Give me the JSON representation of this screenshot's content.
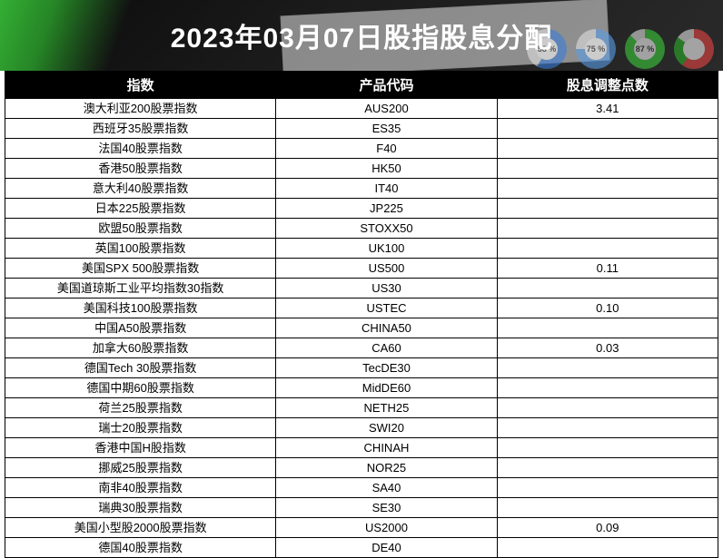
{
  "header": {
    "title": "2023年03月07日股指股息分配",
    "donuts": [
      {
        "label": "58 %"
      },
      {
        "label": "75 %"
      },
      {
        "label": "87 %"
      },
      {
        "label": ""
      }
    ]
  },
  "table": {
    "type": "table",
    "background_color": "#ffffff",
    "header_bg": "#000000",
    "header_fg": "#ffffff",
    "border_color": "#000000",
    "font_size_header": 15,
    "font_size_body": 13,
    "columns": [
      {
        "key": "index_name",
        "label": "指数",
        "width_pct": 38
      },
      {
        "key": "code",
        "label": "产品代码",
        "width_pct": 31
      },
      {
        "key": "dividend",
        "label": "股息调整点数",
        "width_pct": 31
      }
    ],
    "rows": [
      {
        "index_name": "澳大利亚200股票指数",
        "code": "AUS200",
        "dividend": "3.41"
      },
      {
        "index_name": "西班牙35股票指数",
        "code": "ES35",
        "dividend": ""
      },
      {
        "index_name": "法国40股票指数",
        "code": "F40",
        "dividend": ""
      },
      {
        "index_name": "香港50股票指数",
        "code": "HK50",
        "dividend": ""
      },
      {
        "index_name": "意大利40股票指数",
        "code": "IT40",
        "dividend": ""
      },
      {
        "index_name": "日本225股票指数",
        "code": "JP225",
        "dividend": ""
      },
      {
        "index_name": "欧盟50股票指数",
        "code": "STOXX50",
        "dividend": ""
      },
      {
        "index_name": "英国100股票指数",
        "code": "UK100",
        "dividend": ""
      },
      {
        "index_name": "美国SPX 500股票指数",
        "code": "US500",
        "dividend": "0.11"
      },
      {
        "index_name": "美国道琼斯工业平均指数30指数",
        "code": "US30",
        "dividend": ""
      },
      {
        "index_name": "美国科技100股票指数",
        "code": "USTEC",
        "dividend": "0.10"
      },
      {
        "index_name": "中国A50股票指数",
        "code": "CHINA50",
        "dividend": ""
      },
      {
        "index_name": "加拿大60股票指数",
        "code": "CA60",
        "dividend": "0.03"
      },
      {
        "index_name": "德国Tech 30股票指数",
        "code": "TecDE30",
        "dividend": ""
      },
      {
        "index_name": "德国中期60股票指数",
        "code": "MidDE60",
        "dividend": ""
      },
      {
        "index_name": "荷兰25股票指数",
        "code": "NETH25",
        "dividend": ""
      },
      {
        "index_name": "瑞士20股票指数",
        "code": "SWI20",
        "dividend": ""
      },
      {
        "index_name": "香港中国H股指数",
        "code": "CHINAH",
        "dividend": ""
      },
      {
        "index_name": "挪威25股票指数",
        "code": "NOR25",
        "dividend": ""
      },
      {
        "index_name": "南非40股票指数",
        "code": "SA40",
        "dividend": ""
      },
      {
        "index_name": "瑞典30股票指数",
        "code": "SE30",
        "dividend": ""
      },
      {
        "index_name": "美国小型股2000股票指数",
        "code": "US2000",
        "dividend": "0.09"
      },
      {
        "index_name": "德国40股票指数",
        "code": "DE40",
        "dividend": ""
      }
    ]
  }
}
